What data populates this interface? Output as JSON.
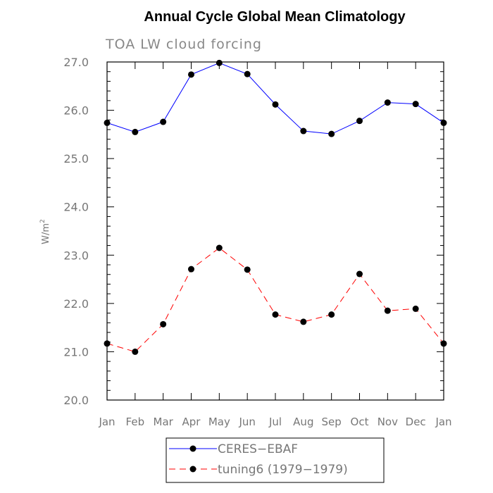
{
  "chart_data": {
    "type": "line",
    "title": "Annual Cycle Global Mean Climatology",
    "subtitle": "TOA LW cloud forcing",
    "ylabel": "W/m",
    "ylabel_sup": "2",
    "categories": [
      "Jan",
      "Feb",
      "Mar",
      "Apr",
      "May",
      "Jun",
      "Jul",
      "Aug",
      "Sep",
      "Oct",
      "Nov",
      "Dec",
      "Jan"
    ],
    "ylim": [
      20.0,
      27.0
    ],
    "yticks": [
      "20.0",
      "21.0",
      "22.0",
      "23.0",
      "24.0",
      "25.0",
      "26.0",
      "27.0"
    ],
    "series": [
      {
        "name": "CERES−EBAF",
        "color": "#0000ff",
        "dash": "solid",
        "values": [
          25.74,
          25.55,
          25.76,
          26.74,
          26.98,
          26.75,
          26.12,
          25.57,
          25.51,
          25.78,
          26.16,
          26.13,
          25.74
        ]
      },
      {
        "name": "tuning6 (1979−1979)",
        "color": "#ff0000",
        "dash": "dashed",
        "values": [
          21.17,
          21.0,
          21.57,
          22.71,
          23.15,
          22.7,
          21.77,
          21.62,
          21.77,
          22.61,
          21.85,
          21.89,
          21.17
        ]
      }
    ],
    "grid": false,
    "legend_position": "bottom-center"
  }
}
